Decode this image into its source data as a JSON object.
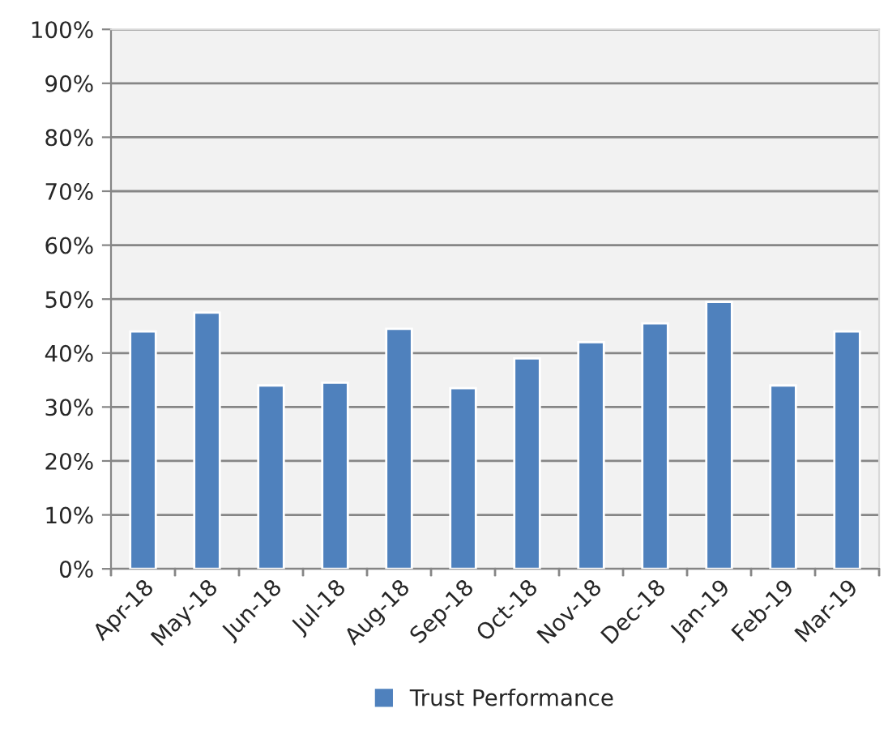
{
  "chart_data": {
    "type": "bar",
    "categories": [
      "Apr-18",
      "May-18",
      "Jun-18",
      "Jul-18",
      "Aug-18",
      "Sep-18",
      "Oct-18",
      "Nov-18",
      "Dec-18",
      "Jan-19",
      "Feb-19",
      "Mar-19"
    ],
    "series": [
      {
        "name": "Trust Performance",
        "color": "#4f81bd",
        "values": [
          44,
          47.5,
          34,
          34.5,
          44.5,
          33.5,
          39,
          42,
          45.5,
          49.5,
          34,
          44
        ]
      }
    ],
    "ylim": [
      0,
      100
    ],
    "yticks": [
      {
        "value": 0,
        "label": "0%"
      },
      {
        "value": 10,
        "label": "10%"
      },
      {
        "value": 20,
        "label": "20%"
      },
      {
        "value": 30,
        "label": "30%"
      },
      {
        "value": 40,
        "label": "40%"
      },
      {
        "value": 50,
        "label": "50%"
      },
      {
        "value": 60,
        "label": "60%"
      },
      {
        "value": 70,
        "label": "70%"
      },
      {
        "value": 80,
        "label": "80%"
      },
      {
        "value": 90,
        "label": "90%"
      },
      {
        "value": 100,
        "label": "100%"
      }
    ],
    "grid": "y",
    "legend": "bottom"
  }
}
